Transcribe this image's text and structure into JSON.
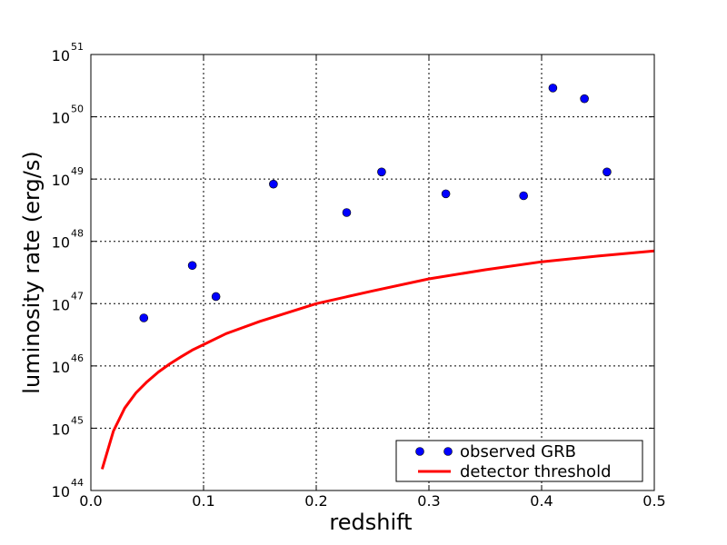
{
  "chart_data": {
    "type": "scatter",
    "xlabel": "redshift",
    "ylabel": "luminosity rate (erg/s)",
    "xlim": [
      0.0,
      0.5
    ],
    "ylim": [
      1e+44,
      1e+51
    ],
    "yscale": "log",
    "grid": true,
    "legend_position": "bottom-right",
    "x_ticks": [
      "0.0",
      "0.1",
      "0.2",
      "0.3",
      "0.4",
      "0.5"
    ],
    "y_ticks": [
      {
        "value": 1e+44,
        "base": "10",
        "exp": "44"
      },
      {
        "value": 1e+45,
        "base": "10",
        "exp": "45"
      },
      {
        "value": 1e+46,
        "base": "10",
        "exp": "46"
      },
      {
        "value": 1e+47,
        "base": "10",
        "exp": "47"
      },
      {
        "value": 1e+48,
        "base": "10",
        "exp": "48"
      },
      {
        "value": 1e+49,
        "base": "10",
        "exp": "49"
      },
      {
        "value": 1e+50,
        "base": "10",
        "exp": "50"
      },
      {
        "value": 1e+51,
        "base": "10",
        "exp": "51"
      }
    ],
    "series": [
      {
        "name": "observed GRB",
        "kind": "scatter",
        "color": "#0000ff",
        "x": [
          0.047,
          0.09,
          0.111,
          0.162,
          0.227,
          0.258,
          0.315,
          0.384,
          0.41,
          0.438,
          0.458
        ],
        "y": [
          5.9e+46,
          4.1e+47,
          1.3e+47,
          8.3e+48,
          2.9e+48,
          1.3e+49,
          5.8e+48,
          5.4e+48,
          2.9e+50,
          1.95e+50,
          1.3e+49
        ]
      },
      {
        "name": "detector threshold",
        "kind": "line",
        "color": "#ff0000",
        "x": [
          0.01,
          0.02,
          0.03,
          0.04,
          0.05,
          0.06,
          0.07,
          0.08,
          0.09,
          0.1,
          0.12,
          0.15,
          0.2,
          0.25,
          0.3,
          0.35,
          0.4,
          0.45,
          0.5
        ],
        "y": [
          2.2e+44,
          9e+44,
          2.1e+45,
          3.7e+45,
          5.6e+45,
          8e+45,
          1.08e+46,
          1.4e+46,
          1.8e+46,
          2.2e+46,
          3.3e+46,
          5.2e+46,
          1e+47,
          1.6e+47,
          2.5e+47,
          3.5e+47,
          4.7e+47,
          5.8e+47,
          7e+47
        ]
      }
    ]
  }
}
